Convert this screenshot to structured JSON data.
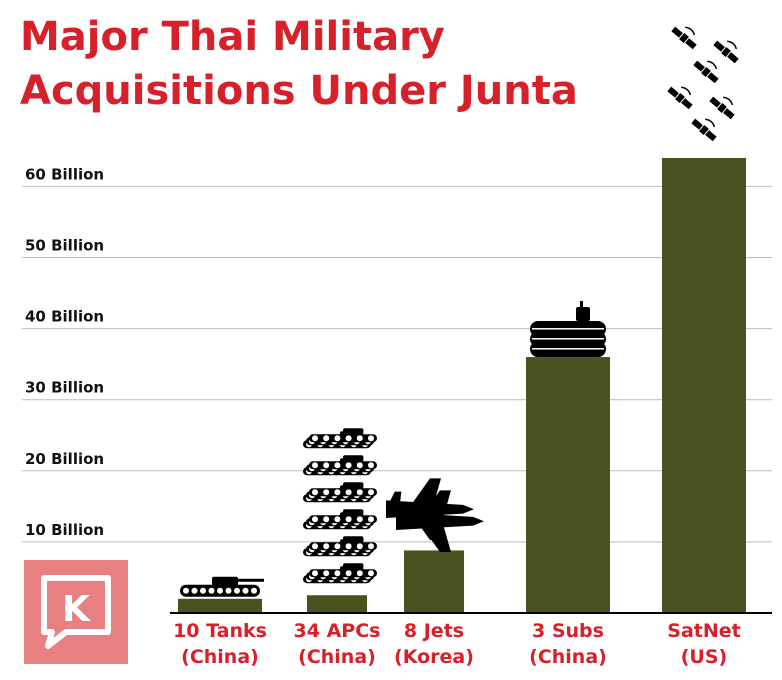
{
  "chart_data": {
    "type": "bar",
    "title_lines": [
      "Major Thai Military",
      "Acquisitions Under Junta"
    ],
    "categories": [
      [
        "10 Tanks",
        "(China)"
      ],
      [
        "34 APCs",
        "(China)"
      ],
      [
        "8 Jets",
        "(Korea)"
      ],
      [
        "3 Subs",
        "(China)"
      ],
      [
        "SatNet",
        "(US)"
      ]
    ],
    "values": [
      2,
      2.5,
      8.8,
      36,
      64
    ],
    "ytick_values": [
      10,
      20,
      30,
      40,
      50,
      60
    ],
    "ytick_labels": [
      "10 Billion",
      "20 Billion",
      "30 Billion",
      "40 Billion",
      "50 Billion",
      "60 Billion"
    ],
    "ylim": [
      0,
      64
    ],
    "grid": true,
    "bar_color": "#4a5320",
    "title_color": "#d8202b",
    "category_color": "#d8202b",
    "icons": [
      "tank-icon",
      "apc-icon",
      "jet-icon",
      "submarine-icon",
      "satellite-icon"
    ]
  },
  "logo": {
    "letter": "K",
    "color": "#e88082"
  }
}
